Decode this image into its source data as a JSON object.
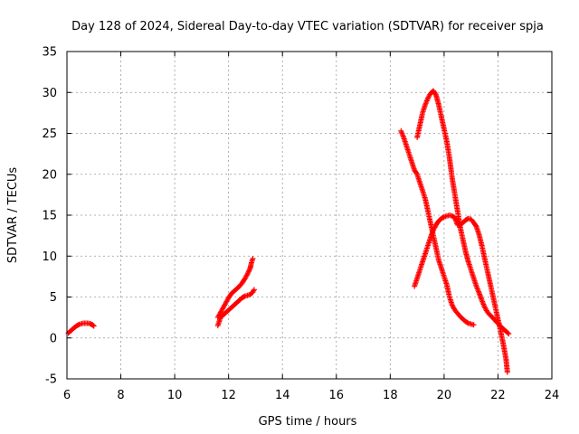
{
  "chart_data": {
    "type": "scatter",
    "title": "Day 128 of 2024, Sidereal Day-to-day VTEC variation (SDTVAR) for receiver spja",
    "xlabel": "GPS time / hours",
    "ylabel": "SDTVAR / TECUs",
    "xlim": [
      6,
      24
    ],
    "ylim": [
      -5,
      35
    ],
    "xticks": [
      6,
      8,
      10,
      12,
      14,
      16,
      18,
      20,
      22,
      24
    ],
    "yticks": [
      -5,
      0,
      5,
      10,
      15,
      20,
      25,
      30,
      35
    ],
    "grid": true,
    "marker": "plus",
    "color": "#ff0000",
    "series": [
      {
        "points": [
          [
            6.05,
            0.6
          ],
          [
            6.15,
            0.9
          ],
          [
            6.25,
            1.2
          ],
          [
            6.35,
            1.45
          ],
          [
            6.45,
            1.65
          ],
          [
            6.55,
            1.75
          ],
          [
            6.65,
            1.8
          ],
          [
            6.75,
            1.8
          ],
          [
            6.85,
            1.75
          ],
          [
            6.95,
            1.6
          ],
          [
            7.0,
            1.45
          ]
        ]
      },
      {
        "points": [
          [
            11.6,
            1.5
          ],
          [
            11.65,
            2.0
          ],
          [
            11.7,
            2.5
          ],
          [
            11.8,
            2.8
          ],
          [
            11.9,
            3.1
          ],
          [
            12.0,
            3.4
          ],
          [
            12.1,
            3.7
          ],
          [
            12.2,
            4.0
          ],
          [
            12.3,
            4.3
          ],
          [
            12.4,
            4.6
          ],
          [
            12.5,
            4.9
          ],
          [
            12.6,
            5.1
          ],
          [
            12.7,
            5.2
          ],
          [
            12.8,
            5.3
          ],
          [
            12.9,
            5.6
          ],
          [
            12.95,
            5.9
          ]
        ]
      },
      {
        "points": [
          [
            11.6,
            2.5
          ],
          [
            11.7,
            3.1
          ],
          [
            11.8,
            3.7
          ],
          [
            11.9,
            4.3
          ],
          [
            12.0,
            4.9
          ],
          [
            12.1,
            5.4
          ],
          [
            12.2,
            5.7
          ],
          [
            12.3,
            6.0
          ],
          [
            12.4,
            6.3
          ],
          [
            12.5,
            6.7
          ],
          [
            12.6,
            7.2
          ],
          [
            12.7,
            7.8
          ],
          [
            12.8,
            8.5
          ],
          [
            12.85,
            9.2
          ],
          [
            12.9,
            9.7
          ]
        ]
      },
      {
        "points": [
          [
            18.4,
            25.3
          ],
          [
            18.5,
            24.5
          ],
          [
            18.6,
            23.5
          ],
          [
            18.7,
            22.5
          ],
          [
            18.8,
            21.5
          ],
          [
            18.9,
            20.5
          ],
          [
            19.0,
            20.0
          ],
          [
            19.1,
            19.0
          ],
          [
            19.2,
            18.0
          ],
          [
            19.3,
            17.0
          ],
          [
            19.4,
            15.5
          ],
          [
            19.5,
            14.0
          ],
          [
            19.6,
            12.5
          ],
          [
            19.7,
            11.0
          ],
          [
            19.8,
            9.5
          ],
          [
            19.9,
            8.5
          ],
          [
            20.0,
            7.5
          ],
          [
            20.1,
            6.5
          ],
          [
            20.2,
            5.0
          ],
          [
            20.3,
            4.0
          ],
          [
            20.4,
            3.4
          ],
          [
            20.5,
            3.0
          ],
          [
            20.6,
            2.6
          ],
          [
            20.7,
            2.3
          ],
          [
            20.8,
            2.0
          ],
          [
            20.9,
            1.8
          ],
          [
            21.0,
            1.7
          ],
          [
            21.1,
            1.6
          ]
        ]
      },
      {
        "points": [
          [
            19.0,
            24.5
          ],
          [
            19.1,
            26.0
          ],
          [
            19.2,
            27.5
          ],
          [
            19.3,
            28.5
          ],
          [
            19.4,
            29.3
          ],
          [
            19.5,
            29.9
          ],
          [
            19.6,
            30.2
          ],
          [
            19.7,
            29.7
          ],
          [
            19.8,
            28.5
          ],
          [
            19.9,
            27.0
          ],
          [
            20.0,
            25.5
          ],
          [
            20.1,
            24.0
          ],
          [
            20.2,
            22.0
          ],
          [
            20.3,
            19.5
          ],
          [
            20.4,
            17.5
          ],
          [
            20.5,
            15.5
          ],
          [
            20.6,
            13.5
          ],
          [
            20.7,
            12.0
          ],
          [
            20.8,
            10.5
          ],
          [
            20.9,
            9.3
          ],
          [
            21.0,
            8.3
          ],
          [
            21.1,
            7.3
          ],
          [
            21.2,
            6.3
          ],
          [
            21.3,
            5.5
          ],
          [
            21.4,
            4.6
          ],
          [
            21.5,
            3.8
          ],
          [
            21.6,
            3.2
          ],
          [
            21.7,
            2.8
          ],
          [
            21.8,
            2.5
          ],
          [
            21.9,
            2.1
          ],
          [
            22.0,
            1.8
          ],
          [
            22.1,
            1.4
          ],
          [
            22.2,
            1.1
          ],
          [
            22.3,
            0.8
          ],
          [
            22.4,
            0.5
          ]
        ]
      },
      {
        "points": [
          [
            18.9,
            6.3
          ],
          [
            19.0,
            7.3
          ],
          [
            19.1,
            8.3
          ],
          [
            19.2,
            9.3
          ],
          [
            19.3,
            10.3
          ],
          [
            19.4,
            11.3
          ],
          [
            19.5,
            12.3
          ],
          [
            19.6,
            13.2
          ],
          [
            19.7,
            13.8
          ],
          [
            19.8,
            14.3
          ],
          [
            19.9,
            14.6
          ],
          [
            20.0,
            14.8
          ],
          [
            20.1,
            14.9
          ],
          [
            20.2,
            15.0
          ],
          [
            20.3,
            14.9
          ],
          [
            20.4,
            14.7
          ],
          [
            20.5,
            13.8
          ],
          [
            20.6,
            13.8
          ],
          [
            20.7,
            14.1
          ],
          [
            20.8,
            14.4
          ],
          [
            20.9,
            14.6
          ],
          [
            21.0,
            14.5
          ],
          [
            21.1,
            14.1
          ],
          [
            21.2,
            13.6
          ],
          [
            21.3,
            12.6
          ],
          [
            21.4,
            11.3
          ],
          [
            21.5,
            9.8
          ],
          [
            21.6,
            8.3
          ],
          [
            21.7,
            6.8
          ],
          [
            21.8,
            5.3
          ],
          [
            21.9,
            3.8
          ],
          [
            22.0,
            2.3
          ],
          [
            22.1,
            0.8
          ],
          [
            22.2,
            -0.8
          ],
          [
            22.3,
            -2.6
          ],
          [
            22.35,
            -4.2
          ]
        ]
      }
    ]
  }
}
